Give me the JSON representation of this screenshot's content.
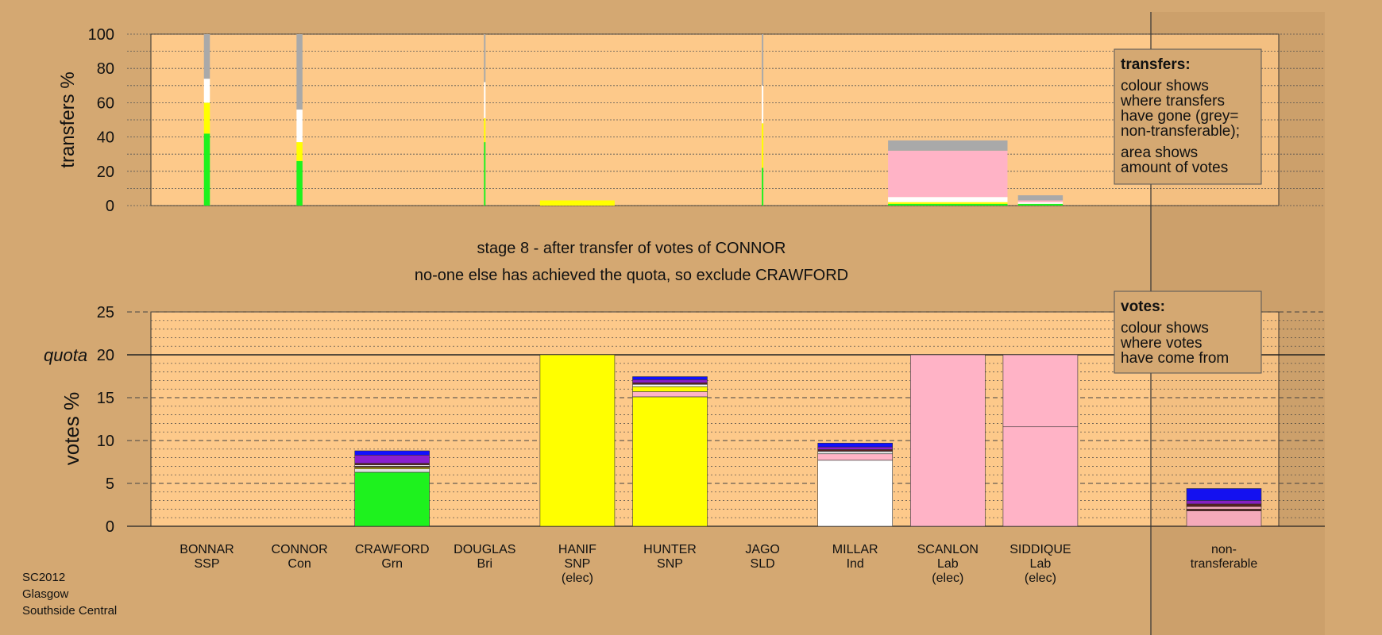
{
  "colors": {
    "page_bg": "#d4a872",
    "plot_bg": "#fdc98a",
    "ssp": "#e0e0e0",
    "con": "#1010ff",
    "grn": "#1ef21e",
    "bri": "#8a1fcf",
    "snp": "#ffff00",
    "sld": "#ff9900",
    "ind": "#ffffff",
    "lab": "#ffb3c6",
    "nontransferable": "#a9a9a9",
    "dark": "#5a2020"
  },
  "stage_title": "stage 8 - after transfer of votes of CONNOR",
  "stage_subtitle": "no-one else has achieved the quota, so exclude CRAWFORD",
  "footer": [
    "SC2012",
    "Glasgow",
    "Southside Central"
  ],
  "legend_transfers": {
    "title": "transfers:",
    "lines": [
      "colour shows",
      "where transfers",
      "have gone (grey=",
      "non-transferable);",
      "area shows",
      "amount of votes"
    ]
  },
  "legend_votes": {
    "title": "votes:",
    "lines": [
      "colour shows",
      "where votes",
      "have come from"
    ]
  },
  "chart_data": [
    {
      "type": "bar",
      "name": "transfers",
      "ylabel": "transfers %",
      "ylim": [
        0,
        100
      ],
      "yticks": [
        0,
        20,
        40,
        60,
        80,
        100
      ],
      "grid": true,
      "legend": "top-right",
      "categories": [
        "BONNAR",
        "CONNOR",
        "CRAWFORD",
        "DOUGLAS",
        "HANIF",
        "HUNTER",
        "JAGO",
        "MILLAR",
        "SCANLON",
        "SIDDIQUE"
      ],
      "bars": [
        {
          "candidate": "BONNAR",
          "width_share": 0.08,
          "segments": [
            {
              "color": "grn",
              "value": 42
            },
            {
              "color": "snp",
              "value": 18
            },
            {
              "color": "ind",
              "value": 14
            },
            {
              "color": "nontransferable",
              "value": 26
            }
          ]
        },
        {
          "candidate": "CONNOR",
          "width_share": 0.08,
          "segments": [
            {
              "color": "grn",
              "value": 26
            },
            {
              "color": "snp",
              "value": 11
            },
            {
              "color": "ind",
              "value": 19
            },
            {
              "color": "nontransferable",
              "value": 44
            }
          ]
        },
        {
          "candidate": "DOUGLAS",
          "width_share": 0.02,
          "segments": [
            {
              "color": "grn",
              "value": 37
            },
            {
              "color": "snp",
              "value": 14
            },
            {
              "color": "ind",
              "value": 21
            },
            {
              "color": "nontransferable",
              "value": 28
            }
          ]
        },
        {
          "candidate": "HANIF",
          "width_share": 1.0,
          "segments": [
            {
              "color": "snp",
              "value": 3
            }
          ]
        },
        {
          "candidate": "JAGO",
          "width_share": 0.02,
          "segments": [
            {
              "color": "grn",
              "value": 22
            },
            {
              "color": "snp",
              "value": 26
            },
            {
              "color": "ind",
              "value": 22
            },
            {
              "color": "nontransferable",
              "value": 30
            }
          ]
        },
        {
          "candidate": "SCANLON",
          "width_share": 1.6,
          "segments": [
            {
              "color": "grn",
              "value": 1
            },
            {
              "color": "snp",
              "value": 1
            },
            {
              "color": "ind",
              "value": 3
            },
            {
              "color": "lab",
              "value": 27
            },
            {
              "color": "nontransferable",
              "value": 6
            }
          ]
        },
        {
          "candidate": "SIDDIQUE",
          "width_share": 0.6,
          "segments": [
            {
              "color": "grn",
              "value": 1
            },
            {
              "color": "ind",
              "value": 1
            },
            {
              "color": "lab",
              "value": 1
            },
            {
              "color": "nontransferable",
              "value": 3
            }
          ]
        }
      ]
    },
    {
      "type": "bar",
      "name": "votes",
      "ylabel": "votes %",
      "ylim": [
        0,
        25
      ],
      "yticks": [
        0,
        5,
        10,
        15,
        20,
        25
      ],
      "quota": 20,
      "quota_label": "quota",
      "grid": true,
      "legend": "top-right",
      "categories": [
        {
          "name": "BONNAR",
          "party": "SSP",
          "status": ""
        },
        {
          "name": "CONNOR",
          "party": "Con",
          "status": ""
        },
        {
          "name": "CRAWFORD",
          "party": "Grn",
          "status": ""
        },
        {
          "name": "DOUGLAS",
          "party": "Bri",
          "status": ""
        },
        {
          "name": "HANIF",
          "party": "SNP",
          "status": "(elec)"
        },
        {
          "name": "HUNTER",
          "party": "SNP",
          "status": ""
        },
        {
          "name": "JAGO",
          "party": "SLD",
          "status": ""
        },
        {
          "name": "MILLAR",
          "party": "Ind",
          "status": ""
        },
        {
          "name": "SCANLON",
          "party": "Lab",
          "status": "(elec)"
        },
        {
          "name": "SIDDIQUE",
          "party": "Lab",
          "status": "(elec)"
        }
      ],
      "nontransferable": {
        "name": "non-",
        "name2": "transferable"
      },
      "bars": [
        {
          "candidate": "BONNAR",
          "segments": []
        },
        {
          "candidate": "CONNOR",
          "segments": []
        },
        {
          "candidate": "CRAWFORD",
          "segments": [
            {
              "color": "grn",
              "value": 6.3
            },
            {
              "color": "ssp",
              "value": 0.4
            },
            {
              "color": "snp",
              "value": 0.15
            },
            {
              "color": "dark",
              "value": 0.15
            },
            {
              "color": "ind",
              "value": 0.15
            },
            {
              "color": "dark",
              "value": 0.2
            },
            {
              "color": "bri",
              "value": 0.95
            },
            {
              "color": "con",
              "value": 0.5
            }
          ]
        },
        {
          "candidate": "DOUGLAS",
          "segments": []
        },
        {
          "candidate": "HANIF",
          "segments": [
            {
              "color": "snp",
              "value": 20
            }
          ]
        },
        {
          "candidate": "HUNTER",
          "segments": [
            {
              "color": "snp",
              "value": 15.1
            },
            {
              "color": "lab",
              "value": 0.6
            },
            {
              "color": "snp",
              "value": 0.6
            },
            {
              "color": "ind",
              "value": 0.25
            },
            {
              "color": "dark",
              "value": 0.2
            },
            {
              "color": "bri",
              "value": 0.35
            },
            {
              "color": "con",
              "value": 0.35
            }
          ]
        },
        {
          "candidate": "JAGO",
          "segments": []
        },
        {
          "candidate": "MILLAR",
          "segments": [
            {
              "color": "ind",
              "value": 7.7
            },
            {
              "color": "lab",
              "value": 0.75
            },
            {
              "color": "ssp",
              "value": 0.3
            },
            {
              "color": "dark",
              "value": 0.2
            },
            {
              "color": "bri",
              "value": 0.3
            },
            {
              "color": "con",
              "value": 0.45
            }
          ]
        },
        {
          "candidate": "SCANLON",
          "segments": [
            {
              "color": "lab",
              "value": 20
            }
          ]
        },
        {
          "candidate": "SIDDIQUE",
          "segments": [
            {
              "color": "lab",
              "value": 11.6
            },
            {
              "color": "lab",
              "value": 8.4
            }
          ]
        },
        {
          "candidate": "non-transferable",
          "segments": [
            {
              "color": "lab",
              "value": 1.8
            },
            {
              "color": "dark",
              "value": 0.2
            },
            {
              "color": "lab",
              "value": 0.3
            },
            {
              "color": "dark",
              "value": 0.3
            },
            {
              "color": "bri",
              "value": 0.4
            },
            {
              "color": "con",
              "value": 1.4
            }
          ]
        }
      ]
    }
  ]
}
